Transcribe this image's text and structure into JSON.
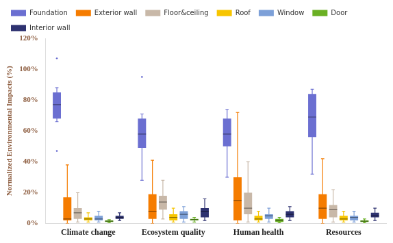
{
  "chart_data": {
    "type": "boxplot",
    "y_label": "Normalized Environmental Impacts (%)",
    "categories": [
      "Climate change",
      "Ecosystem quality",
      "Human health",
      "Resources"
    ],
    "ylim": [
      0,
      120
    ],
    "yticks": [
      {
        "value": 0,
        "label": "0%"
      },
      {
        "value": 20,
        "label": "20%"
      },
      {
        "value": 40,
        "label": "40%"
      },
      {
        "value": 60,
        "label": "60%"
      },
      {
        "value": 80,
        "label": "80%"
      },
      {
        "value": 100,
        "label": "100%"
      },
      {
        "value": 120,
        "label": "120%"
      }
    ],
    "grid": false,
    "legend": "top",
    "series": [
      {
        "name": "Foundation",
        "color": "#6b6fd1",
        "min": [
          66,
          28,
          30,
          32
        ],
        "q1": [
          68,
          49,
          50,
          56
        ],
        "median": [
          77,
          58,
          58,
          69
        ],
        "q3": [
          85,
          68,
          68,
          84
        ],
        "max": [
          88,
          71,
          74,
          87
        ],
        "outliers": [
          [
            107,
            47
          ],
          [
            95
          ],
          [],
          []
        ]
      },
      {
        "name": "Exterior wall",
        "color": "#f57c00",
        "min": [
          0,
          0,
          0,
          0
        ],
        "q1": [
          2,
          3,
          2,
          3
        ],
        "median": [
          3,
          8,
          15,
          10
        ],
        "q3": [
          17,
          19,
          30,
          19
        ],
        "max": [
          38,
          41,
          72,
          42
        ]
      },
      {
        "name": "Floor&ceiling",
        "color": "#c8b8a8",
        "min": [
          1,
          3,
          1,
          1
        ],
        "q1": [
          3,
          9,
          6,
          4
        ],
        "median": [
          7,
          14,
          10,
          9
        ],
        "q3": [
          10,
          18,
          20,
          12
        ],
        "max": [
          20,
          28,
          40,
          22
        ]
      },
      {
        "name": "Roof",
        "color": "#f7c500",
        "min": [
          1,
          1,
          1,
          1
        ],
        "q1": [
          2,
          2,
          2,
          2
        ],
        "median": [
          3,
          4,
          3,
          3
        ],
        "q3": [
          4,
          6,
          5,
          5
        ],
        "max": [
          7,
          10,
          8,
          8
        ]
      },
      {
        "name": "Window",
        "color": "#7da0d8",
        "min": [
          1,
          1,
          1,
          1
        ],
        "q1": [
          2,
          3,
          3,
          2
        ],
        "median": [
          3,
          6,
          5,
          4
        ],
        "q3": [
          5,
          8,
          6,
          5
        ],
        "max": [
          8,
          11,
          10,
          8
        ]
      },
      {
        "name": "Door",
        "color": "#6ab023",
        "min": [
          0.5,
          1,
          0.5,
          0.5
        ],
        "q1": [
          1,
          2,
          1,
          1
        ],
        "median": [
          1.5,
          2.5,
          2,
          1.5
        ],
        "q3": [
          2,
          3,
          3,
          2
        ],
        "max": [
          2.5,
          4,
          4,
          3
        ]
      },
      {
        "name": "Interior wall",
        "color": "#2e3270",
        "min": [
          2,
          2,
          2,
          2
        ],
        "q1": [
          3,
          4,
          4,
          4
        ],
        "median": [
          4,
          8,
          6,
          5
        ],
        "q3": [
          5,
          10,
          8,
          7
        ],
        "max": [
          7,
          16,
          11,
          10
        ]
      }
    ]
  }
}
